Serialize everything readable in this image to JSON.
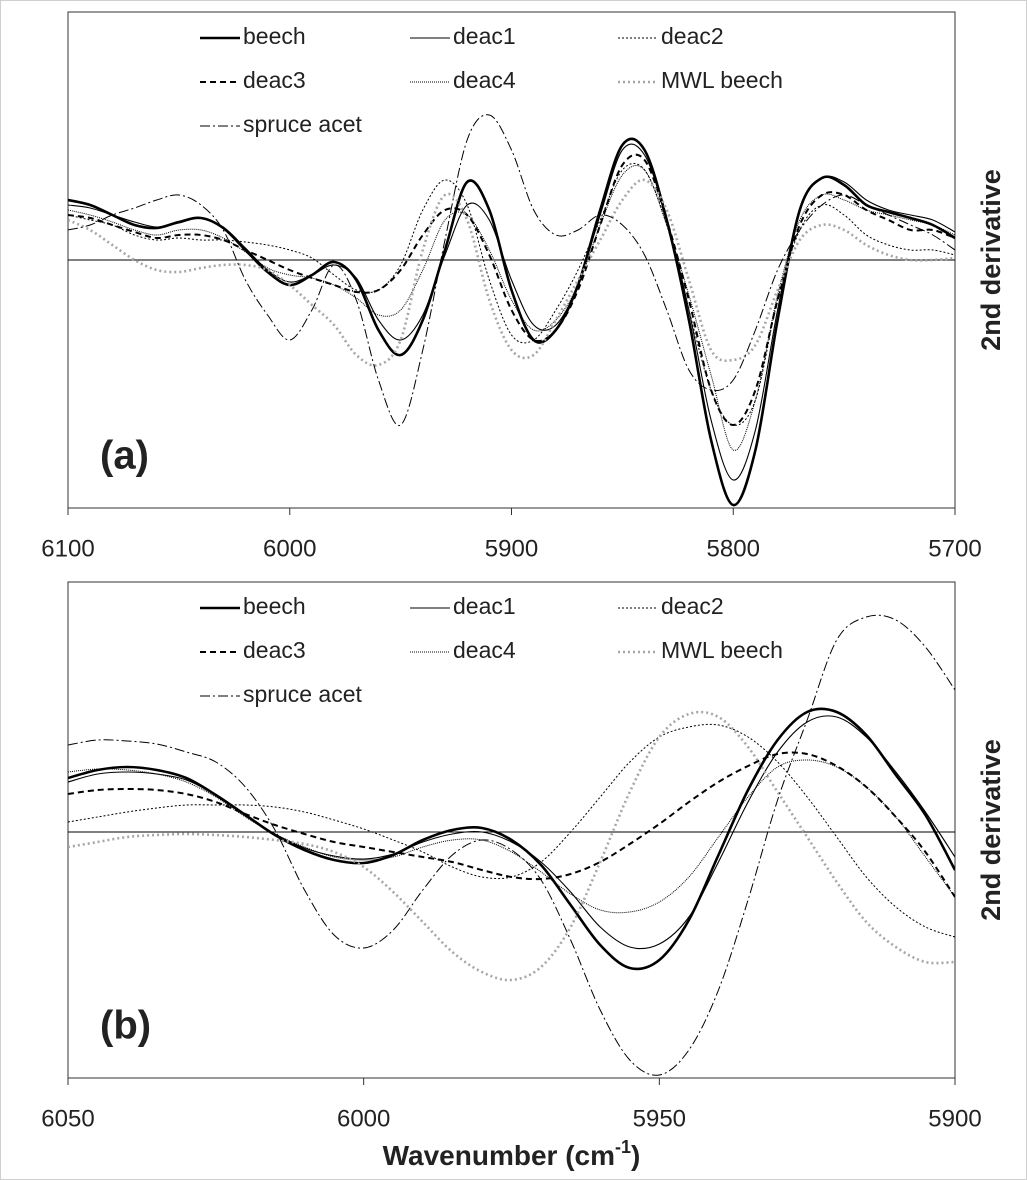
{
  "chart_data": [
    {
      "type": "line",
      "panel_label": "(a)",
      "y_label": "2nd derivative",
      "x": [
        6100,
        6090,
        6080,
        6070,
        6060,
        6050,
        6040,
        6030,
        6020,
        6010,
        6000,
        5990,
        5980,
        5970,
        5960,
        5950,
        5940,
        5930,
        5920,
        5910,
        5900,
        5890,
        5880,
        5870,
        5860,
        5850,
        5840,
        5830,
        5820,
        5810,
        5800,
        5790,
        5780,
        5770,
        5760,
        5750,
        5740,
        5730,
        5720,
        5710,
        5700
      ],
      "xlim": [
        6100,
        5700
      ],
      "xticks": [
        6100,
        6000,
        5900,
        5800,
        5700
      ],
      "ylim": [
        -2.48,
        2.48
      ],
      "zero_line": true,
      "series": [
        {
          "name": "beech",
          "color": "#000000",
          "width": 2.6,
          "dash": "none",
          "values": [
            0.6,
            0.55,
            0.45,
            0.35,
            0.32,
            0.38,
            0.42,
            0.32,
            0.1,
            -0.12,
            -0.25,
            -0.15,
            -0.02,
            -0.2,
            -0.7,
            -0.95,
            -0.6,
            0.1,
            0.78,
            0.5,
            -0.3,
            -0.8,
            -0.7,
            -0.25,
            0.5,
            1.15,
            1.1,
            0.4,
            -0.6,
            -1.8,
            -2.45,
            -1.9,
            -0.6,
            0.5,
            0.82,
            0.75,
            0.55,
            0.48,
            0.42,
            0.35,
            0.22
          ]
        },
        {
          "name": "deac1",
          "color": "#000000",
          "width": 1.1,
          "dash": "none",
          "values": [
            0.55,
            0.52,
            0.45,
            0.38,
            0.33,
            0.37,
            0.42,
            0.33,
            0.12,
            -0.1,
            -0.22,
            -0.15,
            -0.05,
            -0.18,
            -0.6,
            -0.8,
            -0.55,
            0.05,
            0.55,
            0.4,
            -0.2,
            -0.65,
            -0.65,
            -0.25,
            0.45,
            1.1,
            1.05,
            0.4,
            -0.5,
            -1.6,
            -2.2,
            -1.7,
            -0.5,
            0.5,
            0.82,
            0.78,
            0.6,
            0.5,
            0.45,
            0.4,
            0.28
          ]
        },
        {
          "name": "deac2",
          "color": "#000000",
          "width": 1,
          "dash": "2,2",
          "values": [
            0.45,
            0.4,
            0.35,
            0.25,
            0.2,
            0.22,
            0.2,
            0.2,
            0.18,
            0.15,
            0.1,
            0.02,
            -0.15,
            -0.3,
            -0.3,
            -0.05,
            0.5,
            0.8,
            0.55,
            -0.2,
            -0.75,
            -0.8,
            -0.5,
            -0.1,
            0.4,
            0.9,
            0.9,
            0.35,
            -0.5,
            -1.3,
            -1.65,
            -1.4,
            -0.4,
            0.3,
            0.55,
            0.45,
            0.25,
            0.15,
            0.1,
            0.1,
            0.05
          ]
        },
        {
          "name": "deac3",
          "color": "#000000",
          "width": 2,
          "dash": "6,4",
          "values": [
            0.45,
            0.42,
            0.35,
            0.28,
            0.22,
            0.25,
            0.25,
            0.2,
            0.1,
            0.0,
            -0.1,
            -0.18,
            -0.25,
            -0.32,
            -0.3,
            -0.1,
            0.25,
            0.5,
            0.45,
            0.05,
            -0.5,
            -0.8,
            -0.7,
            -0.3,
            0.35,
            0.95,
            1.0,
            0.4,
            -0.4,
            -1.3,
            -1.65,
            -1.3,
            -0.4,
            0.35,
            0.65,
            0.65,
            0.5,
            0.4,
            0.3,
            0.3,
            0.22
          ]
        },
        {
          "name": "deac4",
          "color": "#000000",
          "width": 1,
          "dash": "1,1",
          "values": [
            0.5,
            0.45,
            0.38,
            0.3,
            0.25,
            0.3,
            0.3,
            0.22,
            0.08,
            -0.08,
            -0.15,
            -0.18,
            -0.25,
            -0.38,
            -0.55,
            -0.5,
            -0.1,
            0.4,
            0.45,
            0.1,
            -0.4,
            -0.7,
            -0.6,
            -0.25,
            0.35,
            0.85,
            0.9,
            0.35,
            -0.35,
            -1.15,
            -1.9,
            -1.4,
            -0.35,
            0.4,
            0.65,
            0.6,
            0.5,
            0.45,
            0.4,
            0.35,
            0.25
          ]
        },
        {
          "name": "MWL beech",
          "color": "#a6a6a6",
          "width": 2.6,
          "dash": "2,3",
          "values": [
            0.4,
            0.3,
            0.15,
            0.0,
            -0.1,
            -0.12,
            -0.08,
            -0.05,
            -0.05,
            -0.1,
            -0.25,
            -0.45,
            -0.65,
            -0.95,
            -1.05,
            -0.8,
            0.1,
            0.65,
            0.4,
            -0.4,
            -0.9,
            -0.95,
            -0.6,
            -0.2,
            0.2,
            0.6,
            0.8,
            0.5,
            -0.2,
            -0.9,
            -1.0,
            -0.85,
            -0.3,
            0.2,
            0.35,
            0.3,
            0.15,
            0.05,
            0.0,
            0.0,
            0.02
          ]
        },
        {
          "name": "spruce acet",
          "color": "#000000",
          "width": 1,
          "dash": "10,3,2,3",
          "values": [
            0.3,
            0.35,
            0.45,
            0.52,
            0.6,
            0.65,
            0.55,
            0.3,
            -0.2,
            -0.55,
            -0.8,
            -0.5,
            -0.05,
            -0.4,
            -1.2,
            -1.65,
            -0.9,
            0.2,
            1.2,
            1.45,
            1.1,
            0.5,
            0.25,
            0.3,
            0.45,
            0.35,
            0.05,
            -0.5,
            -1.1,
            -1.3,
            -1.2,
            -0.7,
            -0.1,
            0.3,
            0.55,
            0.65,
            0.55,
            0.45,
            0.35,
            0.25,
            0.1
          ]
        }
      ]
    },
    {
      "type": "line",
      "panel_label": "(b)",
      "y_label": "2nd derivative",
      "x_label": [
        "Wavenumber (cm",
        "-1",
        ")"
      ],
      "x": [
        6050,
        6045,
        6040,
        6035,
        6030,
        6025,
        6020,
        6015,
        6010,
        6005,
        6000,
        5995,
        5990,
        5985,
        5980,
        5975,
        5970,
        5965,
        5960,
        5955,
        5950,
        5945,
        5940,
        5935,
        5930,
        5925,
        5920,
        5915,
        5910,
        5905,
        5900
      ],
      "xlim": [
        6050,
        5900
      ],
      "xticks": [
        6050,
        6000,
        5950,
        5900
      ],
      "ylim": [
        -2.46,
        2.5
      ],
      "zero_line": true,
      "series": [
        {
          "name": "beech",
          "color": "#000000",
          "width": 2.6,
          "dash": "none",
          "values": [
            0.54,
            0.62,
            0.65,
            0.62,
            0.54,
            0.37,
            0.17,
            -0.03,
            -0.18,
            -0.28,
            -0.31,
            -0.23,
            -0.08,
            0.02,
            0.04,
            -0.08,
            -0.33,
            -0.73,
            -1.13,
            -1.36,
            -1.28,
            -0.88,
            -0.23,
            0.42,
            0.92,
            1.2,
            1.2,
            0.97,
            0.57,
            0.17,
            -0.38
          ]
        },
        {
          "name": "deac1",
          "color": "#000000",
          "width": 1.1,
          "dash": "none",
          "values": [
            0.5,
            0.58,
            0.6,
            0.58,
            0.52,
            0.37,
            0.17,
            -0.02,
            -0.16,
            -0.24,
            -0.27,
            -0.22,
            -0.1,
            -0.02,
            0.0,
            -0.1,
            -0.3,
            -0.6,
            -0.95,
            -1.15,
            -1.12,
            -0.85,
            -0.3,
            0.3,
            0.8,
            1.1,
            1.15,
            0.95,
            0.6,
            0.2,
            -0.25
          ]
        },
        {
          "name": "deac2",
          "color": "#000000",
          "width": 1,
          "dash": "2,2",
          "values": [
            0.1,
            0.15,
            0.2,
            0.24,
            0.27,
            0.27,
            0.27,
            0.25,
            0.2,
            0.12,
            0.03,
            -0.08,
            -0.2,
            -0.35,
            -0.45,
            -0.45,
            -0.3,
            0.0,
            0.35,
            0.7,
            0.95,
            1.05,
            1.07,
            0.95,
            0.7,
            0.35,
            -0.05,
            -0.45,
            -0.75,
            -0.95,
            -1.05
          ]
        },
        {
          "name": "deac3",
          "color": "#000000",
          "width": 2,
          "dash": "6,4",
          "values": [
            0.38,
            0.42,
            0.43,
            0.42,
            0.38,
            0.3,
            0.18,
            0.07,
            -0.02,
            -0.1,
            -0.15,
            -0.2,
            -0.25,
            -0.3,
            -0.38,
            -0.45,
            -0.47,
            -0.42,
            -0.3,
            -0.12,
            0.08,
            0.3,
            0.5,
            0.66,
            0.78,
            0.78,
            0.66,
            0.45,
            0.15,
            -0.2,
            -0.65
          ]
        },
        {
          "name": "deac4",
          "color": "#000000",
          "width": 1,
          "dash": "1,1",
          "values": [
            0.6,
            0.63,
            0.62,
            0.58,
            0.5,
            0.35,
            0.15,
            -0.02,
            -0.15,
            -0.25,
            -0.28,
            -0.25,
            -0.15,
            -0.08,
            -0.08,
            -0.2,
            -0.4,
            -0.62,
            -0.78,
            -0.8,
            -0.7,
            -0.45,
            -0.05,
            0.35,
            0.65,
            0.72,
            0.65,
            0.45,
            0.15,
            -0.25,
            -0.65
          ]
        },
        {
          "name": "MWL beech",
          "color": "#a6a6a6",
          "width": 2.6,
          "dash": "2,3",
          "values": [
            -0.15,
            -0.1,
            -0.05,
            -0.03,
            -0.02,
            -0.03,
            -0.05,
            -0.08,
            -0.12,
            -0.2,
            -0.35,
            -0.6,
            -0.9,
            -1.2,
            -1.4,
            -1.48,
            -1.35,
            -0.95,
            -0.3,
            0.4,
            0.95,
            1.18,
            1.15,
            0.85,
            0.4,
            -0.05,
            -0.5,
            -0.9,
            -1.15,
            -1.3,
            -1.3
          ]
        },
        {
          "name": "spruce acet",
          "color": "#000000",
          "width": 1,
          "dash": "10,3,2,3",
          "values": [
            0.87,
            0.92,
            0.91,
            0.88,
            0.8,
            0.7,
            0.45,
            0.02,
            -0.58,
            -1.03,
            -1.16,
            -0.98,
            -0.58,
            -0.23,
            -0.08,
            -0.18,
            -0.48,
            -1.08,
            -1.78,
            -2.28,
            -2.43,
            -2.18,
            -1.58,
            -0.68,
            0.32,
            1.12,
            1.92,
            2.15,
            2.12,
            1.85,
            1.42
          ]
        }
      ]
    }
  ]
}
